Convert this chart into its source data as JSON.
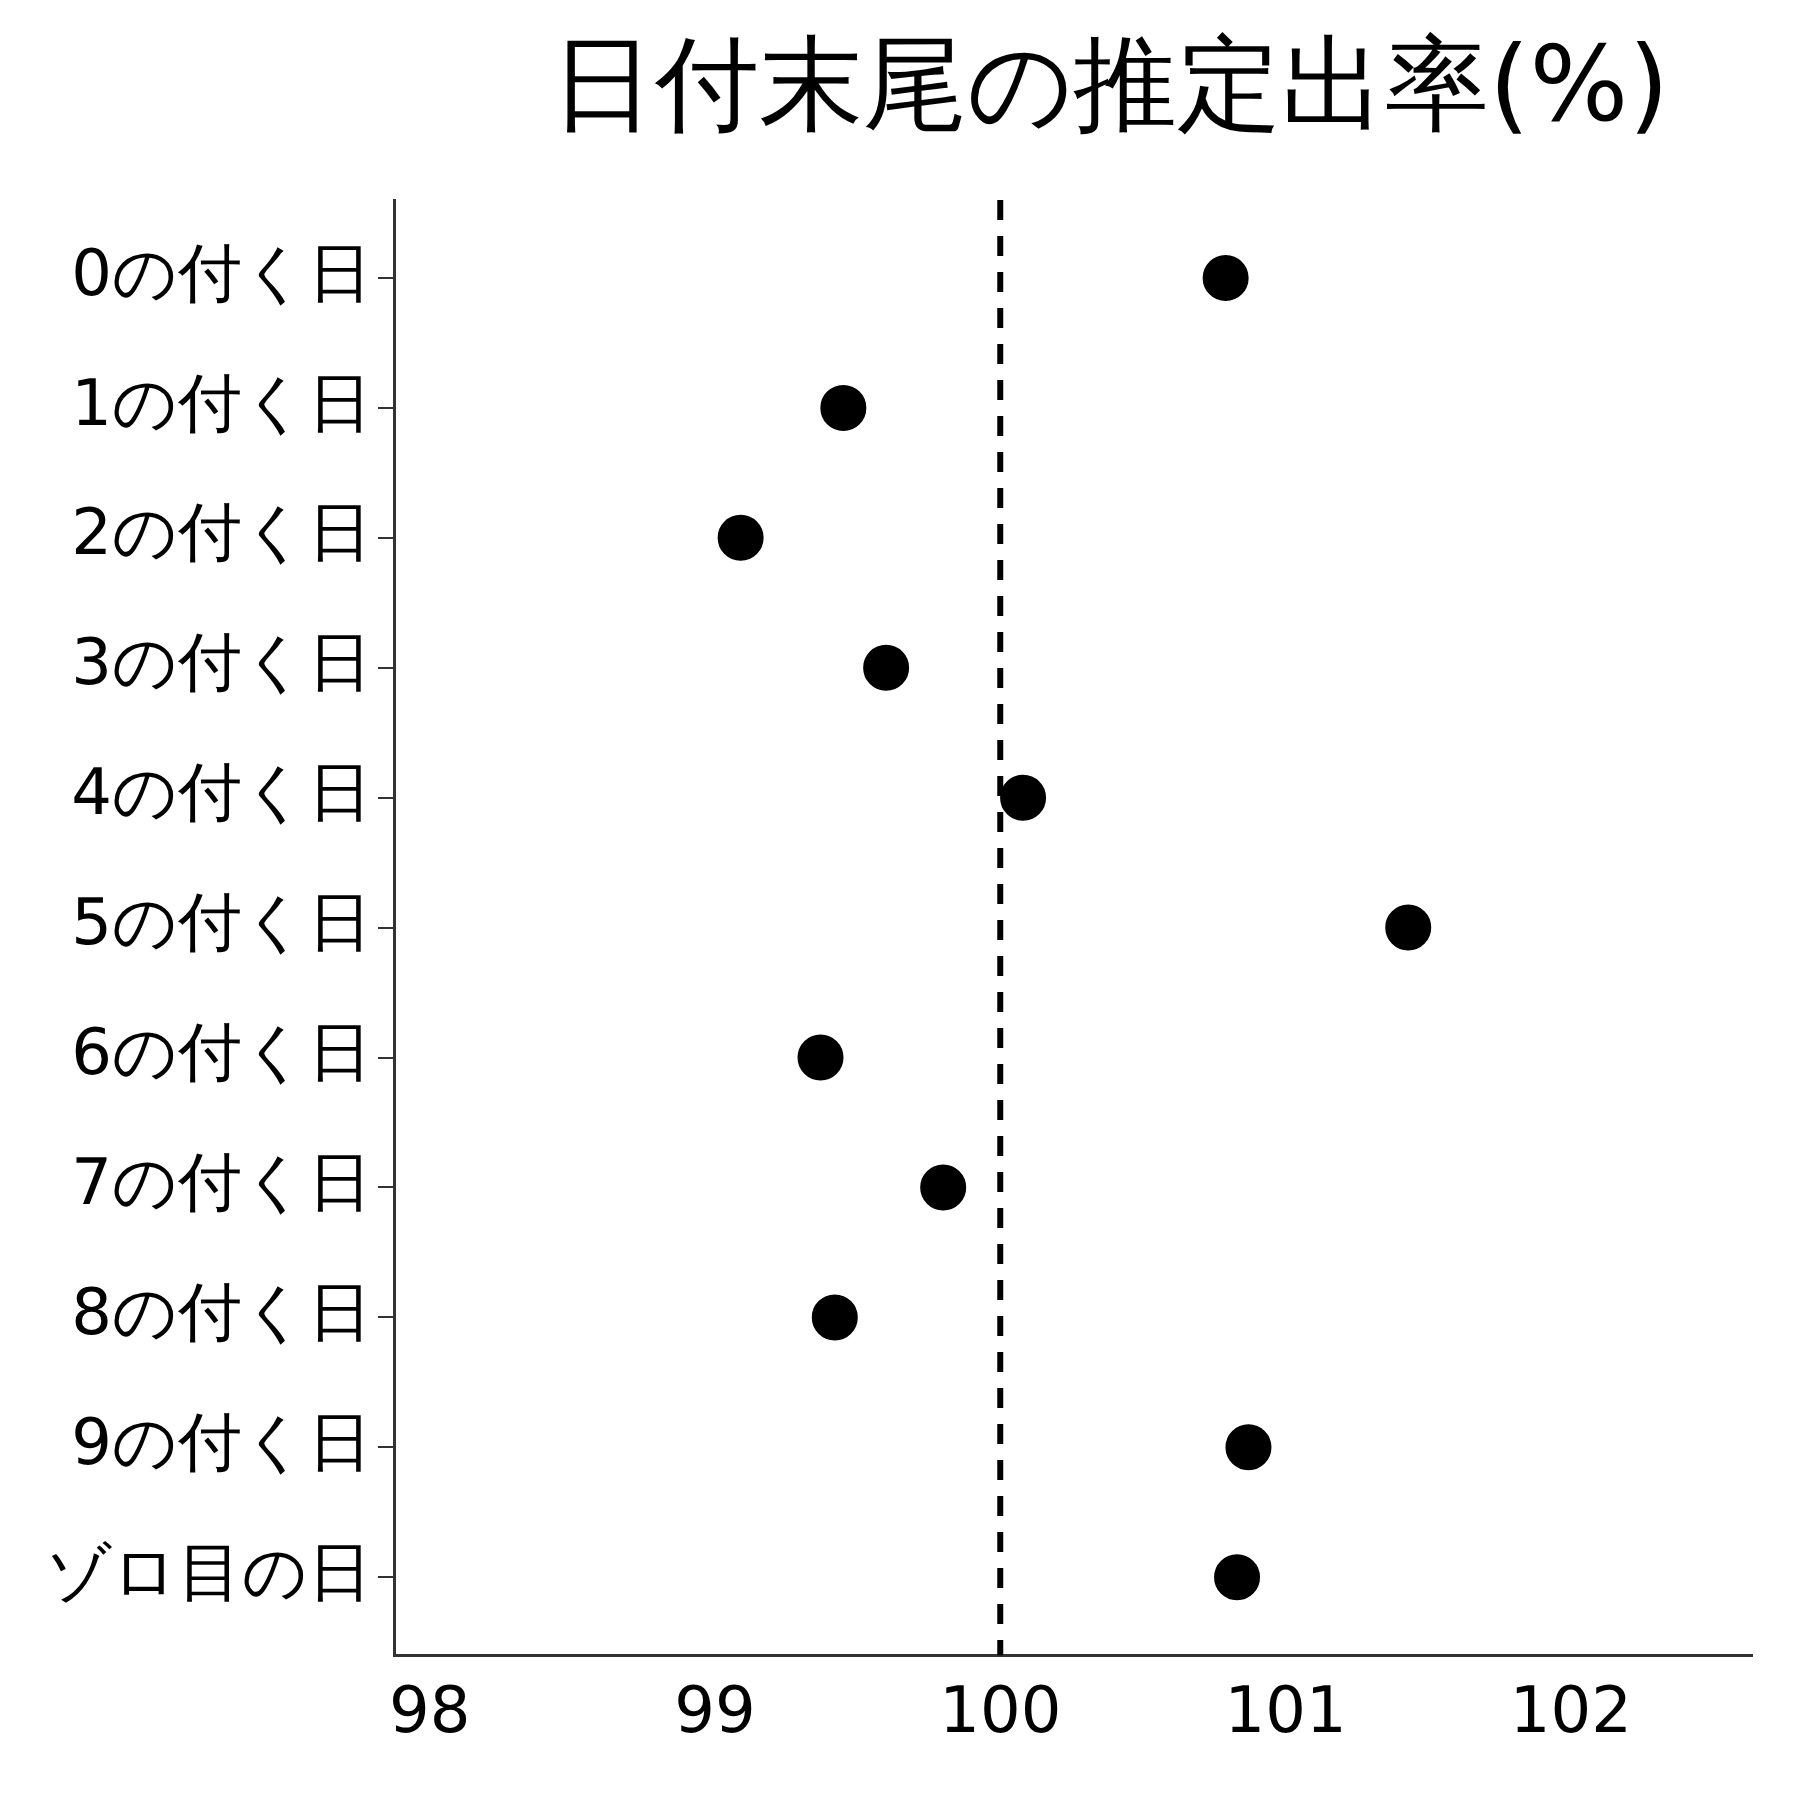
{
  "chart_data": {
    "type": "scatter",
    "orientation": "horizontal",
    "title": "日付末尾の推定出率(%)",
    "categories": [
      "0の付く日",
      "1の付く日",
      "2の付く日",
      "3の付く日",
      "4の付く日",
      "5の付く日",
      "6の付く日",
      "7の付く日",
      "8の付く日",
      "9の付く日",
      "ゾロ目の日"
    ],
    "values": [
      100.79,
      99.45,
      99.09,
      99.6,
      100.08,
      101.43,
      99.37,
      99.8,
      99.42,
      100.87,
      100.83
    ],
    "color": "#000000",
    "marker": "circle",
    "xlim": [
      97.875,
      102.635
    ],
    "xticks": [
      98,
      99,
      100,
      101,
      102
    ],
    "ref_lines": [
      {
        "axis": "x",
        "value": 100,
        "line_style": "dashed",
        "color": "#000000"
      }
    ],
    "grid": false,
    "legend": false
  }
}
